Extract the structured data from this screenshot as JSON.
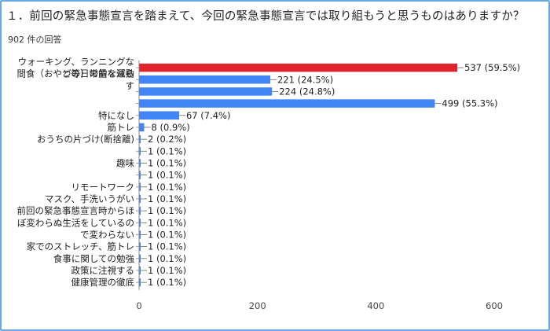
{
  "header": {
    "title": "１．前回の緊急事態宣言を踏まえて、今回の緊急事態宣言では取り組もうと思うものはありますか？",
    "subtitle": "902 件の回答"
  },
  "chart_data": {
    "type": "bar",
    "orientation": "horizontal",
    "title": "１．前回の緊急事態宣言を踏まえて、今回の緊急事態宣言では取り組もうと思うものはありますか？",
    "subtitle": "902 件の回答",
    "xlim": [
      0,
      600
    ],
    "xticks": [
      "0",
      "200",
      "400",
      "600"
    ],
    "grid": false,
    "categories": [
      [
        "ウォーキング、ランニングな",
        "どの日常的な運動"
      ],
      [
        "間食（おやつ等）の量を減ら",
        "す"
      ],
      [],
      [],
      [
        "特になし"
      ],
      [
        "筋トレ"
      ],
      [
        "おうちの片づけ(断捨離)"
      ],
      [],
      [
        "趣味"
      ],
      [],
      [
        "リモートワーク"
      ],
      [
        "マスク、手洗いうがい"
      ],
      [
        "前回の緊急事態宣言時からほ",
        "ぼ変わらぬ生活をしているの",
        "で変わらない"
      ],
      [],
      [],
      [
        "家でのストレッチ、筋トレ"
      ],
      [
        "食事に関しての勉強"
      ],
      [
        "政策に注視する"
      ],
      [
        "健康管理の徹底"
      ]
    ],
    "values": [
      537,
      221,
      224,
      499,
      67,
      8,
      2,
      1,
      1,
      1,
      1,
      1,
      1,
      1,
      1,
      1,
      1,
      1,
      1
    ],
    "data_labels": [
      "537 (59.5%)",
      "221 (24.5%)",
      "224 (24.8%)",
      "499 (55.3%)",
      "67 (7.4%)",
      "8 (0.9%)",
      "2 (0.2%)",
      "1 (0.1%)",
      "1 (0.1%)",
      "1 (0.1%)",
      "1 (0.1%)",
      "1 (0.1%)",
      "1 (0.1%)",
      "1 (0.1%)",
      "1 (0.1%)",
      "1 (0.1%)",
      "1 (0.1%)",
      "1 (0.1%)",
      "1 (0.1%)"
    ],
    "highlight_index": 0,
    "colors": {
      "bar": "#4285f4",
      "highlight": "#e0242e",
      "axis": "#888888"
    }
  }
}
